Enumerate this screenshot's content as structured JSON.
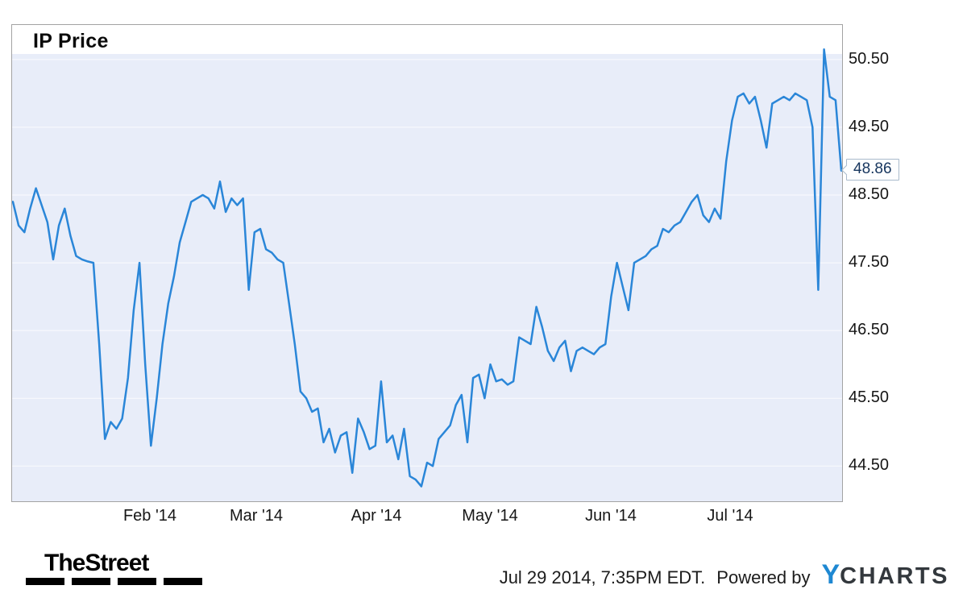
{
  "chart": {
    "title": "IP Price",
    "line_color": "#2a86d8",
    "plot_bg_color": "#e8edf9",
    "last_price_callout": "48.86",
    "y_ticks": [
      "50.50",
      "49.50",
      "48.50",
      "47.50",
      "46.50",
      "45.50",
      "44.50"
    ],
    "x_ticks": [
      "Feb '14",
      "Mar '14",
      "Apr '14",
      "May '14",
      "Jun '14",
      "Jul '14"
    ]
  },
  "chart_data": {
    "type": "line",
    "title": "IP Price",
    "x_unit": "trading days, Jan 2014 through Jul 29 2014",
    "x_tick_labels": [
      "Feb '14",
      "Mar '14",
      "Apr '14",
      "May '14",
      "Jun '14",
      "Jul '14"
    ],
    "y_tick_values": [
      50.5,
      49.5,
      48.5,
      47.5,
      46.5,
      45.5,
      44.5
    ],
    "ylim": [
      43.98,
      51.01
    ],
    "grid": "horizontal-subtle",
    "legend": "none",
    "last_value": 48.86,
    "series": [
      {
        "name": "IP Price",
        "values": [
          48.4,
          48.05,
          47.95,
          48.3,
          48.6,
          48.35,
          48.1,
          47.55,
          48.05,
          48.3,
          47.9,
          47.6,
          47.55,
          47.52,
          47.5,
          46.3,
          44.9,
          45.15,
          45.05,
          45.2,
          45.8,
          46.8,
          47.5,
          46.0,
          44.8,
          45.5,
          46.3,
          46.9,
          47.3,
          47.8,
          48.1,
          48.4,
          48.45,
          48.5,
          48.45,
          48.3,
          48.7,
          48.25,
          48.45,
          48.35,
          48.45,
          47.1,
          47.95,
          48.0,
          47.7,
          47.65,
          47.55,
          47.5,
          46.9,
          46.3,
          45.6,
          45.5,
          45.3,
          45.35,
          44.85,
          45.05,
          44.7,
          44.95,
          45.0,
          44.4,
          45.2,
          45.0,
          44.75,
          44.8,
          45.75,
          44.85,
          44.95,
          44.6,
          45.05,
          44.35,
          44.3,
          44.2,
          44.55,
          44.5,
          44.9,
          45.0,
          45.1,
          45.4,
          45.55,
          44.85,
          45.8,
          45.85,
          45.5,
          46.0,
          45.75,
          45.78,
          45.7,
          45.75,
          46.4,
          46.35,
          46.3,
          46.85,
          46.55,
          46.2,
          46.05,
          46.25,
          46.35,
          45.9,
          46.2,
          46.25,
          46.2,
          46.15,
          46.25,
          46.3,
          47.0,
          47.5,
          47.15,
          46.8,
          47.5,
          47.55,
          47.6,
          47.7,
          47.75,
          48.0,
          47.95,
          48.05,
          48.1,
          48.25,
          48.4,
          48.5,
          48.2,
          48.1,
          48.3,
          48.15,
          49.0,
          49.6,
          49.95,
          50.0,
          49.85,
          49.95,
          49.6,
          49.2,
          49.85,
          49.9,
          49.95,
          49.9,
          50.0,
          49.95,
          49.9,
          49.5,
          47.1,
          50.65,
          49.95,
          49.9,
          48.86
        ]
      }
    ]
  },
  "footer": {
    "brand": "TheStreet",
    "timestamp": "Jul 29 2014, 7:35PM EDT.",
    "powered_by": "Powered by",
    "ycharts_logo_y": "Y",
    "ycharts_logo_charts": "CHARTS"
  }
}
